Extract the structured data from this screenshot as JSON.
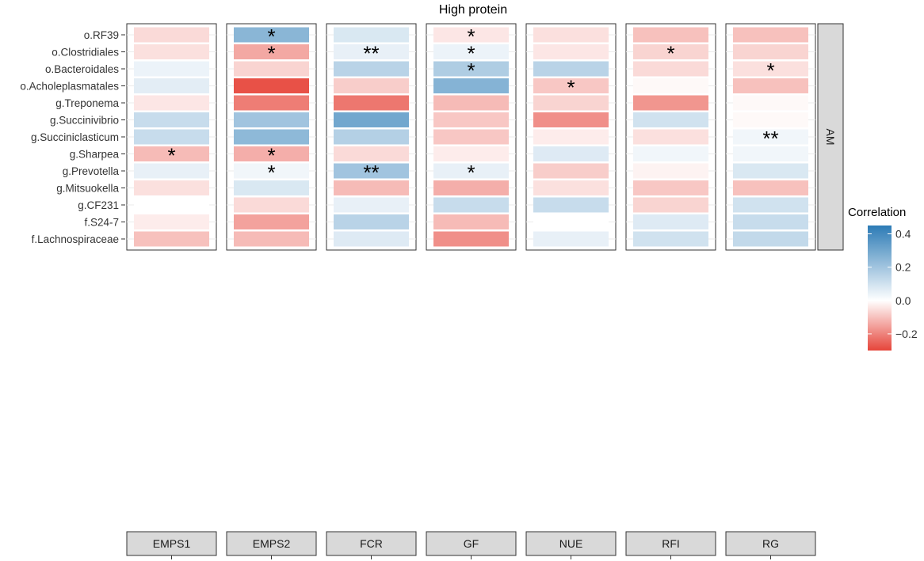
{
  "chart_data": {
    "type": "heatmap",
    "title": "High protein",
    "columns": [
      "EMPS1",
      "EMPS2",
      "FCR",
      "GF",
      "NUE",
      "RFI",
      "RG"
    ],
    "legend": {
      "title": "Correlation",
      "ticks": [
        0.4,
        0.2,
        0.0,
        -0.2
      ],
      "tick_labels": [
        "0.4",
        "0.2",
        "0.0",
        "−0.2"
      ],
      "range": [
        -0.3,
        0.45
      ],
      "colors": {
        "high": "#2c7bb6",
        "mid": "#ffffff",
        "low": "#e6453a"
      },
      "placement": "right"
    },
    "grid": true,
    "panels": [
      {
        "name": "AM",
        "rows": [
          "o.RF39",
          "o.Clostridiales",
          "o.Bacteroidales",
          "o.Acholeplasmatales",
          "g.Treponema",
          "g.Succinivibrio",
          "g.Succiniclasticum",
          "g.Sharpea",
          "g.Prevotella",
          "g.Mitsuokella",
          "g.CF231",
          "f.S24-7",
          "f.Lachnospiraceae"
        ],
        "values": [
          [
            -0.06,
            0.25,
            0.08,
            -0.04,
            -0.05,
            -0.1,
            -0.1
          ],
          [
            -0.05,
            -0.14,
            0.05,
            0.04,
            -0.04,
            -0.07,
            -0.07
          ],
          [
            0.04,
            -0.07,
            0.15,
            0.17,
            0.15,
            -0.06,
            -0.05
          ],
          [
            0.06,
            -0.28,
            -0.08,
            0.26,
            -0.09,
            -0.01,
            -0.1
          ],
          [
            -0.04,
            -0.21,
            -0.22,
            -0.11,
            -0.07,
            -0.17,
            -0.01
          ],
          [
            0.12,
            0.2,
            0.3,
            -0.09,
            -0.18,
            0.1,
            -0.01
          ],
          [
            0.12,
            0.24,
            0.16,
            -0.09,
            -0.03,
            -0.05,
            0.03
          ],
          [
            -0.11,
            -0.13,
            -0.06,
            -0.03,
            0.07,
            0.03,
            0.03
          ],
          [
            0.05,
            0.03,
            0.2,
            0.05,
            -0.08,
            -0.02,
            0.08
          ],
          [
            -0.05,
            0.08,
            -0.11,
            -0.13,
            -0.05,
            -0.09,
            -0.1
          ],
          [
            0.0,
            -0.06,
            0.05,
            0.12,
            0.12,
            -0.07,
            0.1
          ],
          [
            -0.03,
            -0.15,
            0.15,
            -0.11,
            0.0,
            0.07,
            0.12
          ],
          [
            -0.1,
            -0.11,
            0.07,
            -0.18,
            0.05,
            0.1,
            0.13
          ]
        ],
        "stars": [
          [
            "",
            "*",
            "",
            "*",
            "",
            "",
            ""
          ],
          [
            "",
            "*",
            "**",
            "*",
            "",
            "*",
            ""
          ],
          [
            "",
            "",
            "",
            "*",
            "",
            "",
            "*"
          ],
          [
            "",
            "",
            "",
            "",
            "*",
            "",
            ""
          ],
          [
            "",
            "",
            "",
            "",
            "",
            "",
            ""
          ],
          [
            "",
            "",
            "",
            "",
            "",
            "",
            ""
          ],
          [
            "",
            "",
            "",
            "",
            "",
            "",
            "**"
          ],
          [
            "*",
            "*",
            "",
            "",
            "",
            "",
            ""
          ],
          [
            "",
            "*",
            "**",
            "*",
            "",
            "",
            ""
          ],
          [
            "",
            "",
            "",
            "",
            "",
            "",
            ""
          ],
          [
            "",
            "",
            "",
            "",
            "",
            "",
            ""
          ],
          [
            "",
            "",
            "",
            "",
            "",
            "",
            ""
          ],
          [
            "",
            "",
            "",
            "",
            "",
            "",
            ""
          ]
        ]
      }
    ]
  }
}
